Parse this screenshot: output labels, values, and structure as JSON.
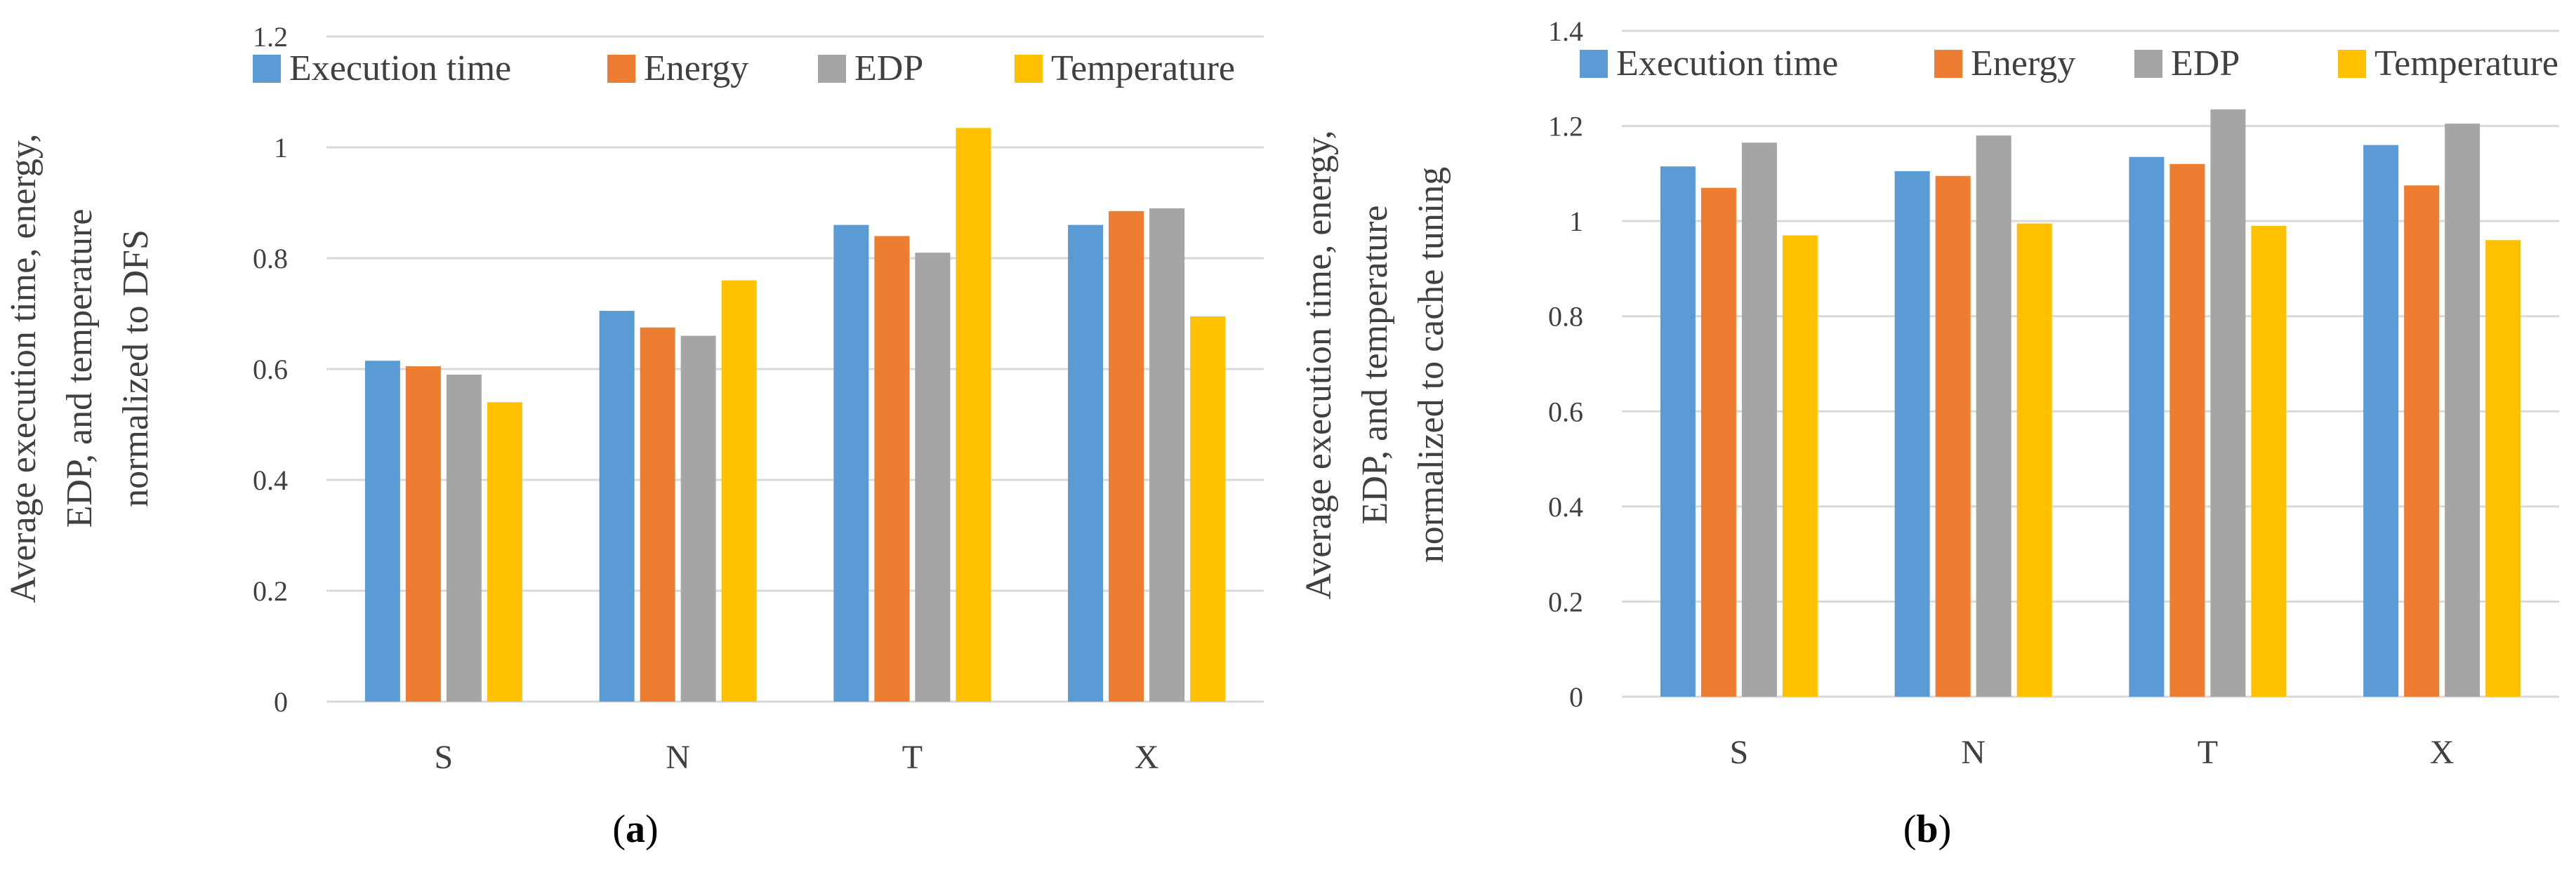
{
  "figures": [
    {
      "caption_prefix": "(",
      "caption_letter": "a",
      "caption_suffix": ")",
      "ylabel_lines": [
        "Average execution time, energy,",
        "EDP, and temperature",
        "normalized to DFS"
      ]
    },
    {
      "caption_prefix": "(",
      "caption_letter": "b",
      "caption_suffix": ")",
      "ylabel_lines": [
        "Average execution time, energy,",
        "EDP, and temperature",
        "normalized to cache tuning"
      ]
    }
  ],
  "chart_data": [
    {
      "type": "bar",
      "title": "",
      "xlabel": "",
      "ylabel": "Average execution time, energy, EDP, and temperature normalized to DFS",
      "categories": [
        "S",
        "N",
        "T",
        "X"
      ],
      "ylim": [
        0,
        1.2
      ],
      "yticks": [
        "0",
        "0.2",
        "0.4",
        "0.6",
        "0.8",
        "1",
        "1.2"
      ],
      "grid": true,
      "legend_position": "top",
      "series": [
        {
          "name": "Execution time",
          "color": "#5b9bd5",
          "values": [
            0.615,
            0.705,
            0.86,
            0.86
          ]
        },
        {
          "name": "Energy",
          "color": "#ed7d31",
          "values": [
            0.605,
            0.675,
            0.84,
            0.885
          ]
        },
        {
          "name": "EDP",
          "color": "#a5a5a5",
          "values": [
            0.59,
            0.66,
            0.81,
            0.89
          ]
        },
        {
          "name": "Temperature",
          "color": "#ffc000",
          "values": [
            0.54,
            0.76,
            1.035,
            0.695
          ]
        }
      ]
    },
    {
      "type": "bar",
      "title": "",
      "xlabel": "",
      "ylabel": "Average execution time, energy, EDP, and temperature normalized to cache tuning",
      "categories": [
        "S",
        "N",
        "T",
        "X"
      ],
      "ylim": [
        0,
        1.4
      ],
      "yticks": [
        "0",
        "0.2",
        "0.4",
        "0.6",
        "0.8",
        "1",
        "1.2",
        "1.4"
      ],
      "grid": true,
      "legend_position": "top",
      "series": [
        {
          "name": "Execution time",
          "color": "#5b9bd5",
          "values": [
            1.115,
            1.105,
            1.135,
            1.16
          ]
        },
        {
          "name": "Energy",
          "color": "#ed7d31",
          "values": [
            1.07,
            1.095,
            1.12,
            1.075
          ]
        },
        {
          "name": "EDP",
          "color": "#a5a5a5",
          "values": [
            1.165,
            1.18,
            1.235,
            1.205
          ]
        },
        {
          "name": "Temperature",
          "color": "#ffc000",
          "values": [
            0.97,
            0.995,
            0.99,
            0.96
          ]
        }
      ]
    }
  ]
}
